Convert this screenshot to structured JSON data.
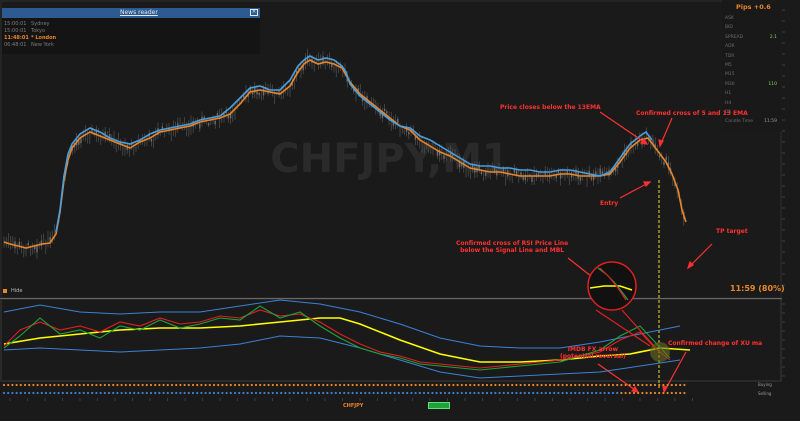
{
  "window": {
    "title": "CHFJPY,M1"
  },
  "news_reader": {
    "title": "News reader",
    "sessions": [
      {
        "time": "15:00:01",
        "name": "Sydney",
        "active": false
      },
      {
        "time": "15:00:01",
        "name": "Tokyo",
        "active": false
      },
      {
        "time": "11:48:01",
        "name": "* London",
        "active": true
      },
      {
        "time": "06:48:01",
        "name": "New York",
        "active": false
      }
    ]
  },
  "info_panel": {
    "pips_label": "Pips +0.6",
    "rows": [
      {
        "label": "ASK",
        "value": ""
      },
      {
        "label": "BID",
        "value": ""
      },
      {
        "label": "SPREAD",
        "value": "2.1"
      },
      {
        "label": "ADR",
        "value": ""
      },
      {
        "label": "TDR",
        "value": ""
      },
      {
        "label": "M5",
        "value": ""
      },
      {
        "label": "M15",
        "value": ""
      },
      {
        "label": "M30",
        "value": "110"
      },
      {
        "label": "H1",
        "value": ""
      },
      {
        "label": "H4",
        "value": ""
      },
      {
        "label": "D1",
        "value": ""
      },
      {
        "label": "Candle Time",
        "value": "11:59"
      }
    ]
  },
  "watermark": "CHFJPY,M1",
  "hide_label": "Hide",
  "countdown": "11:59 (80%)",
  "symbol_tab": "CHFJPY",
  "buy_label": "Buying",
  "sell_label": "Selling",
  "annotations": {
    "price_close": "Price closes below the 13EMA",
    "ema_cross": "Confirmed cross of 5 and 13 EMA",
    "entry": "Entry",
    "tp_target": "TP target",
    "rsi_cross_line1": "Confirmed cross of RSI Price Line",
    "rsi_cross_line2": "below the Signal Line and MBL",
    "imdb_line1": "IMDB FX arrow",
    "imdb_line2": "(potential reversal)",
    "xu_change": "Confirmed change of XU ma"
  },
  "colors": {
    "background": "#1a1a1a",
    "fast_ema": "#4a9fe0",
    "slow_ema": "#e8862a",
    "annotation": "#ff3030",
    "rsi_signal": "#ffff00",
    "accent_green": "#1fa23a"
  }
}
